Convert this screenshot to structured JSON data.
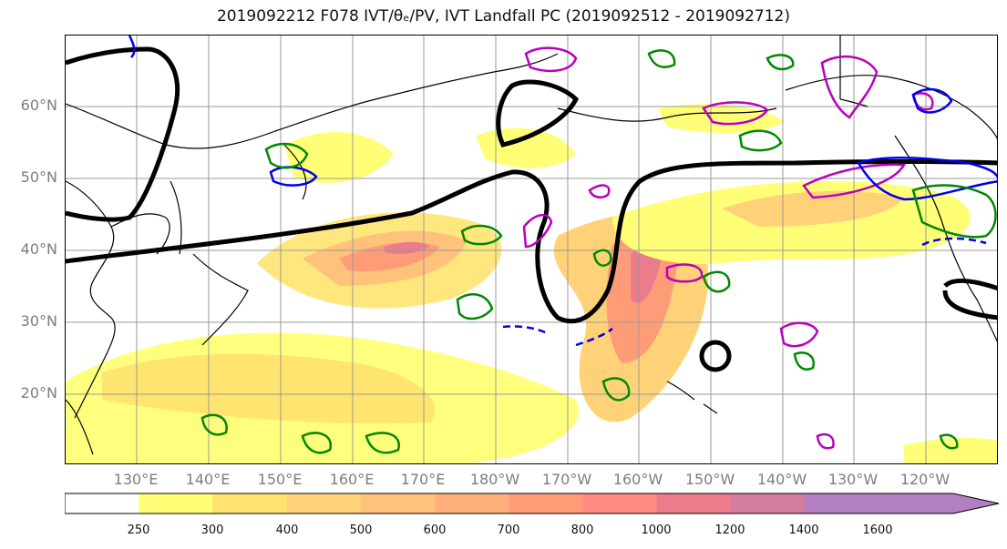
{
  "title": "2019092212 F078 IVT/θₑ/PV, IVT Landfall PC (2019092512 - 2019092712)",
  "map": {
    "lat_labels": [
      "60°N",
      "50°N",
      "40°N",
      "30°N",
      "20°N"
    ],
    "lon_labels": [
      "130°E",
      "140°E",
      "150°E",
      "160°E",
      "170°E",
      "180°W",
      "170°W",
      "160°W",
      "150°W",
      "140°W",
      "130°W",
      "120°W"
    ]
  },
  "colorbar": {
    "levels": [
      "250",
      "300",
      "400",
      "500",
      "600",
      "700",
      "800",
      "1000",
      "1200",
      "1400",
      "1600"
    ],
    "colors": [
      "#ffffff",
      "#ffff77",
      "#ffe470",
      "#ffd278",
      "#ffc27a",
      "#ffb07a",
      "#ff9c78",
      "#ff8a80",
      "#ec7b8c",
      "#d47d9e",
      "#b27fc0"
    ]
  },
  "contour_colors": {
    "theta_e": "#000000",
    "pv_positive": "#bb00bb",
    "pv_negative": "#0000ee",
    "landfall": "#008800"
  }
}
